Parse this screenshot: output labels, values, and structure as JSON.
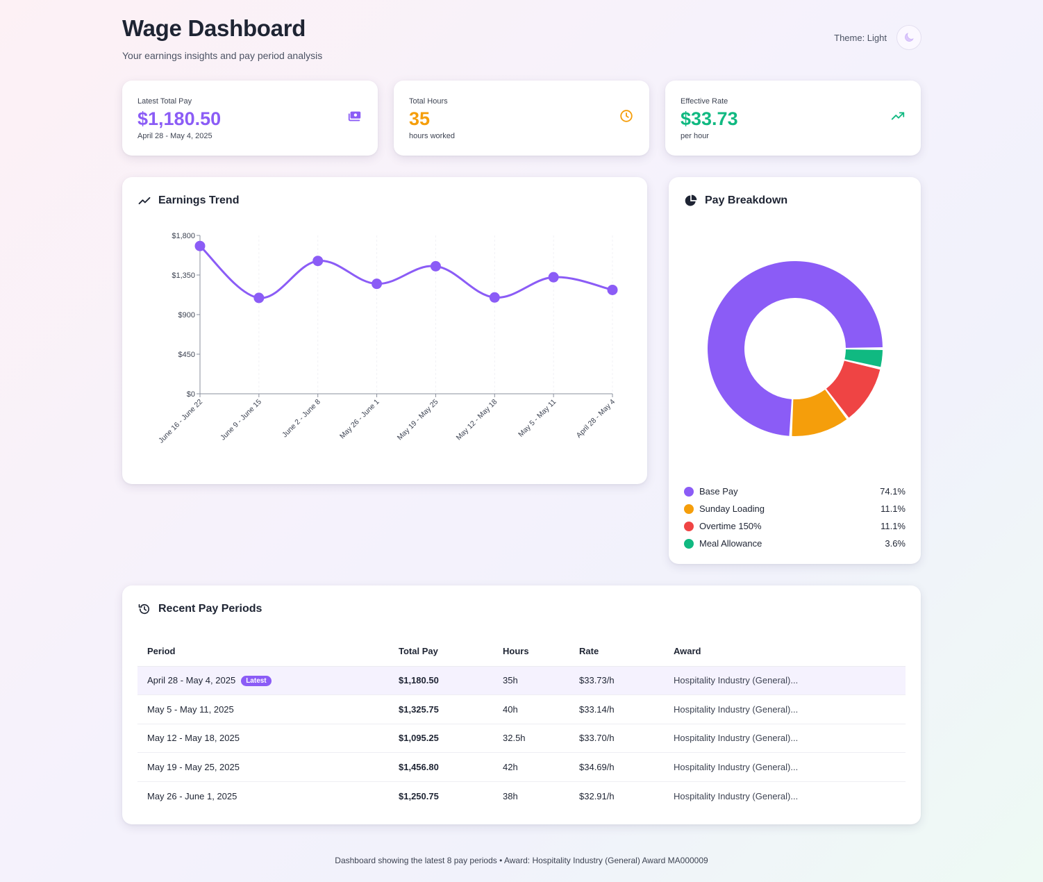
{
  "header": {
    "title": "Wage Dashboard",
    "subtitle": "Your earnings insights and pay period analysis",
    "theme_label": "Theme: Light"
  },
  "stats": [
    {
      "label": "Latest Total Pay",
      "value": "$1,180.50",
      "sub": "April 28 - May 4, 2025",
      "color": "#8b5cf6",
      "icon": "money-icon"
    },
    {
      "label": "Total Hours",
      "value": "35",
      "sub": "hours worked",
      "color": "#f59e0b",
      "icon": "clock-icon"
    },
    {
      "label": "Effective Rate",
      "value": "$33.73",
      "sub": "per hour",
      "color": "#10b981",
      "icon": "trending-up-icon"
    }
  ],
  "trend": {
    "title": "Earnings Trend"
  },
  "breakdown": {
    "title": "Pay Breakdown"
  },
  "chart_data": [
    {
      "type": "line",
      "categories": [
        "June 16 - June 22",
        "June 9 - June 15",
        "June 2 - June 8",
        "May 26 - June 1",
        "May 19 - May 25",
        "May 12 - May 18",
        "May 5 - May 11",
        "April 28 - May 4"
      ],
      "values": [
        1680,
        1090,
        1510,
        1250,
        1450,
        1095,
        1325,
        1180.5
      ],
      "yticks": [
        "$0",
        "$450",
        "$900",
        "$1,350",
        "$1,800"
      ],
      "ylim": [
        0,
        1800
      ],
      "color": "#8b5cf6"
    },
    {
      "type": "pie",
      "series": [
        {
          "name": "Base Pay",
          "pct": "74.1%",
          "value": 74.1,
          "color": "#8b5cf6"
        },
        {
          "name": "Sunday Loading",
          "pct": "11.1%",
          "value": 11.1,
          "color": "#f59e0b"
        },
        {
          "name": "Overtime 150%",
          "pct": "11.1%",
          "value": 11.1,
          "color": "#ef4444"
        },
        {
          "name": "Meal Allowance",
          "pct": "3.6%",
          "value": 3.6,
          "color": "#10b981"
        }
      ]
    }
  ],
  "recent": {
    "title": "Recent Pay Periods",
    "columns": [
      "Period",
      "Total Pay",
      "Hours",
      "Rate",
      "Award"
    ],
    "latest_badge": "Latest",
    "rows": [
      {
        "period": "April 28 - May 4, 2025",
        "pay": "$1,180.50",
        "hours": "35h",
        "rate": "$33.73/h",
        "award": "Hospitality Industry (General)...",
        "latest": true
      },
      {
        "period": "May 5 - May 11, 2025",
        "pay": "$1,325.75",
        "hours": "40h",
        "rate": "$33.14/h",
        "award": "Hospitality Industry (General)..."
      },
      {
        "period": "May 12 - May 18, 2025",
        "pay": "$1,095.25",
        "hours": "32.5h",
        "rate": "$33.70/h",
        "award": "Hospitality Industry (General)..."
      },
      {
        "period": "May 19 - May 25, 2025",
        "pay": "$1,456.80",
        "hours": "42h",
        "rate": "$34.69/h",
        "award": "Hospitality Industry (General)..."
      },
      {
        "period": "May 26 - June 1, 2025",
        "pay": "$1,250.75",
        "hours": "38h",
        "rate": "$32.91/h",
        "award": "Hospitality Industry (General)..."
      }
    ]
  },
  "footer": "Dashboard showing the latest 8 pay periods • Award: Hospitality Industry (General) Award MA000009"
}
